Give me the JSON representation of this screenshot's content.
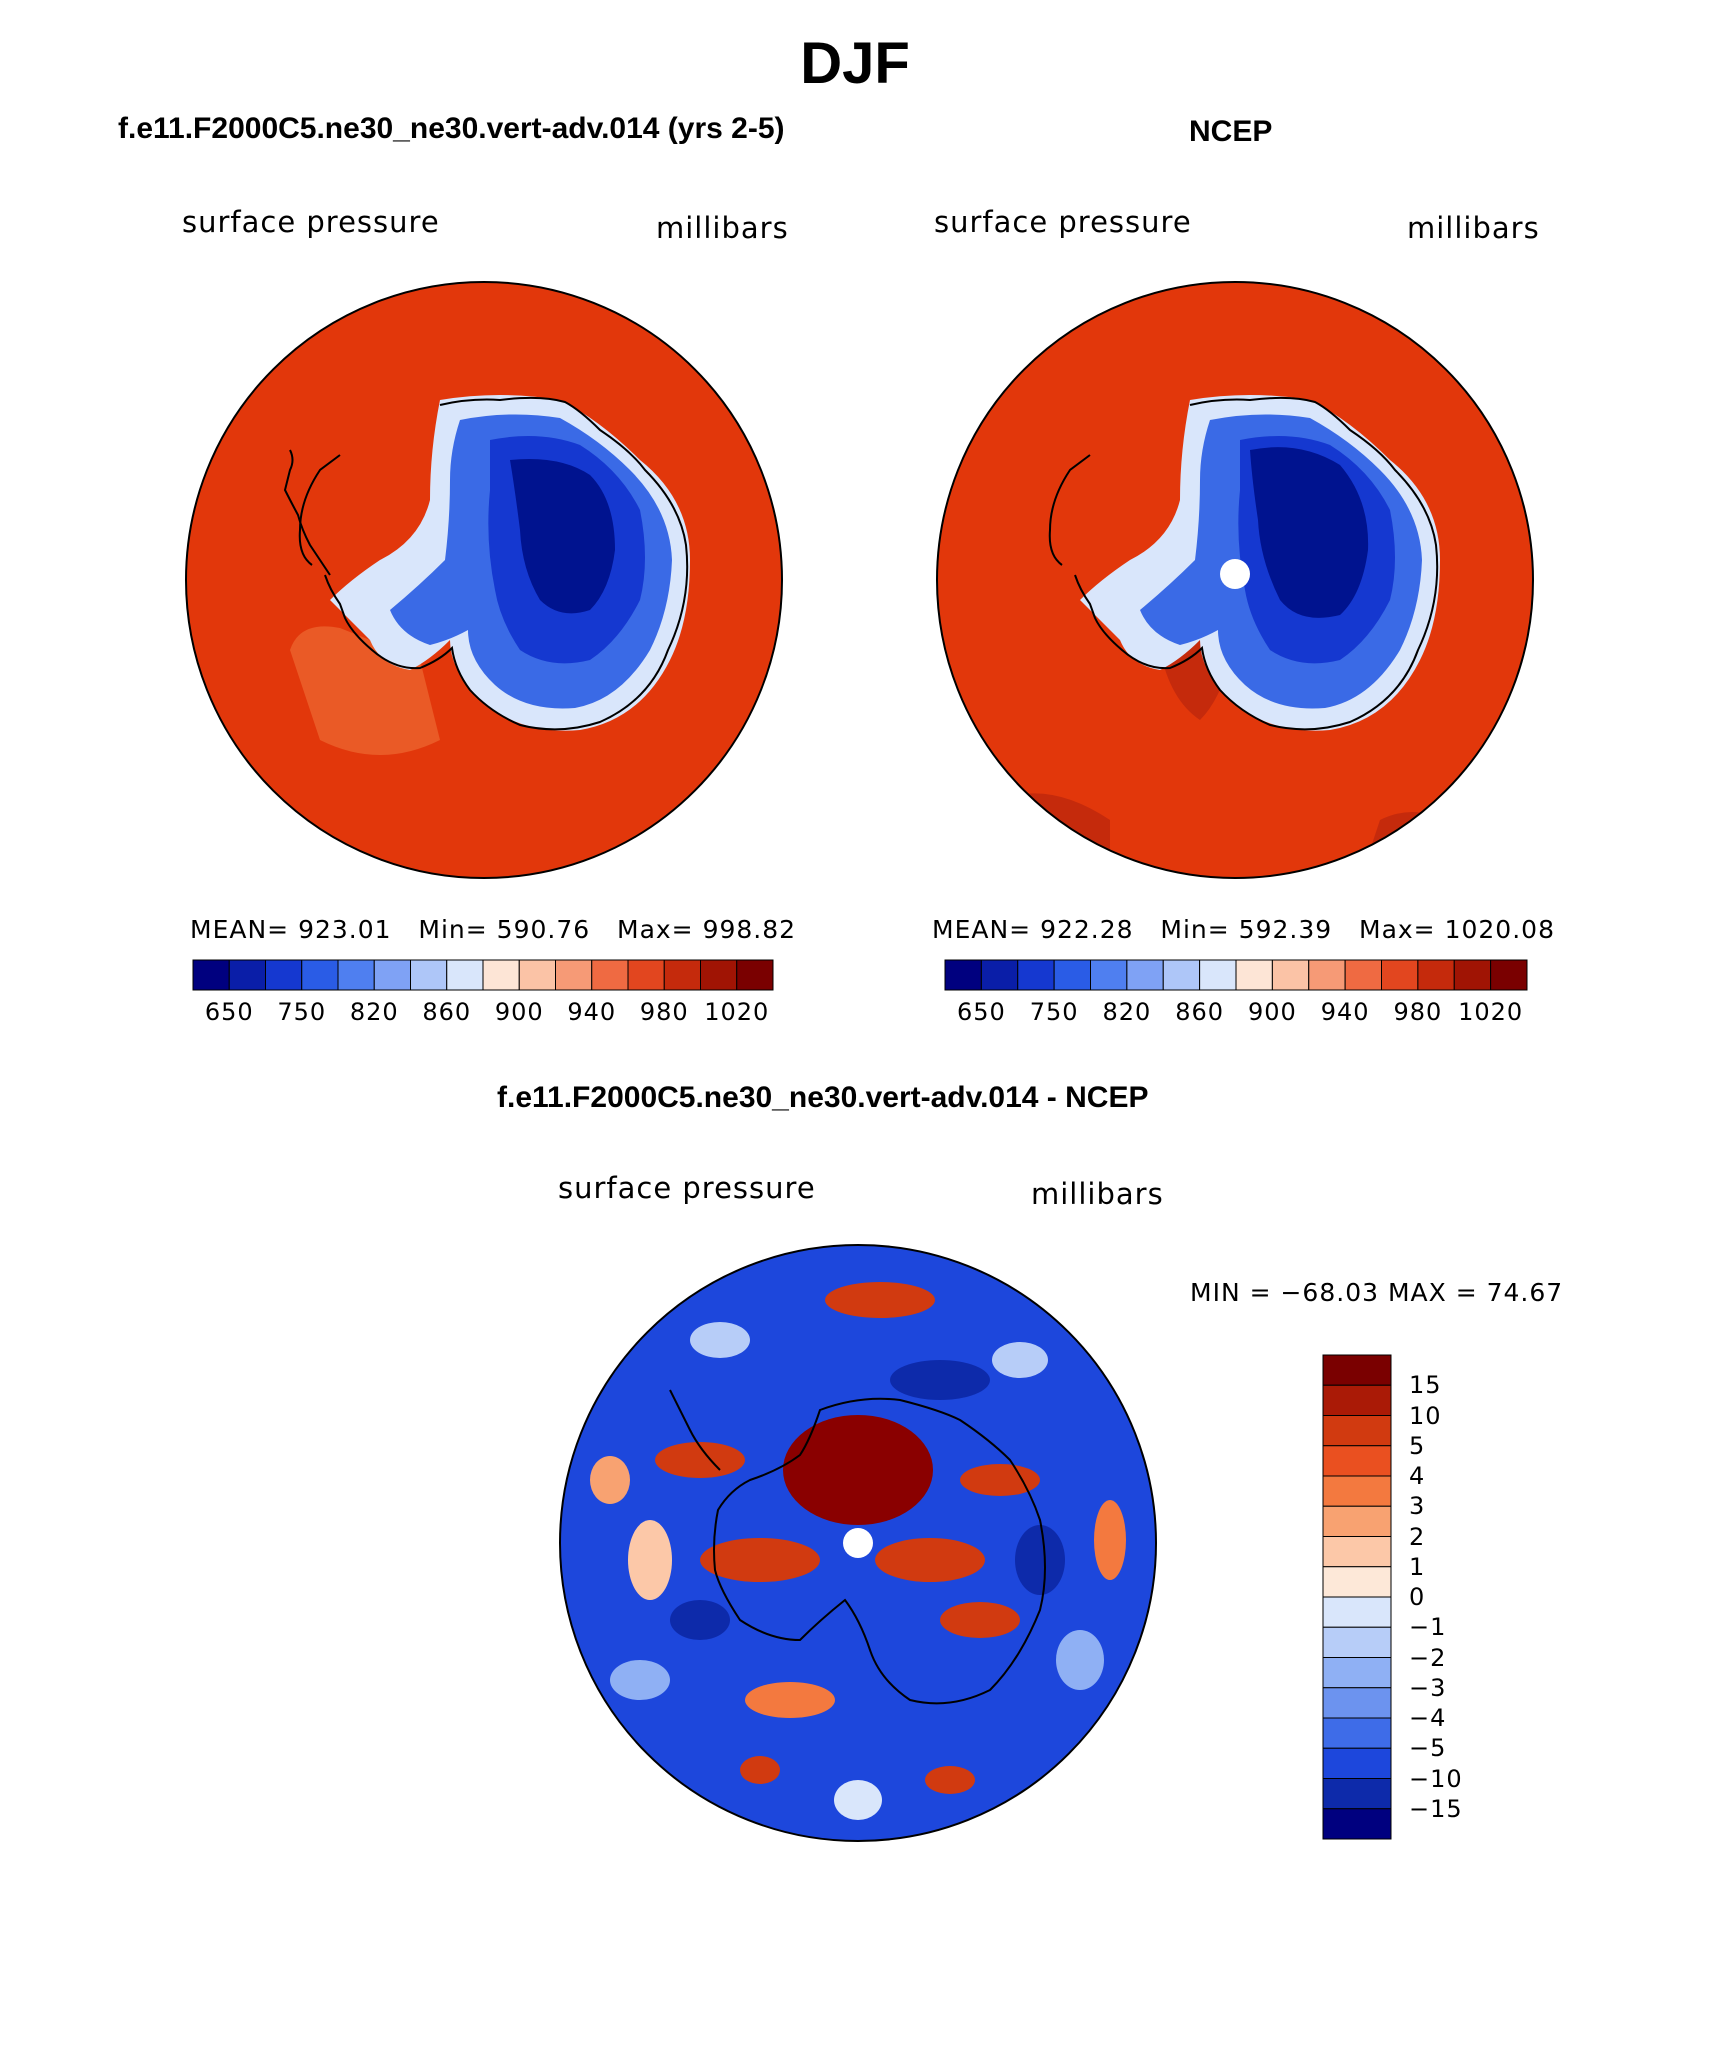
{
  "title": "DJF",
  "panels": {
    "model": {
      "title": "f.e11.F2000C5.ne30_ne30.vert-adv.014 (yrs 2-5)",
      "variable": "surface pressure",
      "units": "millibars",
      "stats": {
        "mean_label": "MEAN=",
        "mean": "923.01",
        "min_label": "Min=",
        "min": "590.76",
        "max_label": "Max=",
        "max": "998.82"
      }
    },
    "obs": {
      "title": "NCEP",
      "variable": "surface pressure",
      "units": "millibars",
      "stats": {
        "mean_label": "MEAN=",
        "mean": "922.28",
        "min_label": "Min=",
        "min": "592.39",
        "max_label": "Max=",
        "max": "1020.08"
      }
    },
    "diff": {
      "title": "f.e11.F2000C5.ne30_ne30.vert-adv.014 - NCEP",
      "variable": "surface pressure",
      "units": "millibars",
      "minmax": "MIN = −68.03 MAX =   74.67"
    }
  },
  "colorbar_abs": {
    "colors": [
      "#00007f",
      "#0a1ea8",
      "#1538d0",
      "#2a5ce6",
      "#4f7ff0",
      "#7fa2f5",
      "#aec6f8",
      "#d9e6fb",
      "#fde5d6",
      "#fbc3a6",
      "#f69a76",
      "#ef6a42",
      "#e2461f",
      "#c52a0c",
      "#a01404",
      "#7a0000"
    ],
    "labels": [
      "650",
      "750",
      "820",
      "860",
      "900",
      "940",
      "980",
      "1020"
    ]
  },
  "colorbar_diff": {
    "colors": [
      "#7a0000",
      "#aa1a06",
      "#d13a10",
      "#ea5020",
      "#f3793f",
      "#f8a271",
      "#fcc8a8",
      "#fde8d8",
      "#d9e6fb",
      "#b7cdf8",
      "#8fb0f4",
      "#6c93ef",
      "#3e6ce8",
      "#1d47dc",
      "#0d2aaa",
      "#00007f"
    ],
    "labels": [
      "15",
      "10",
      "5",
      "4",
      "3",
      "2",
      "1",
      "0",
      "−1",
      "−2",
      "−3",
      "−4",
      "−5",
      "−10",
      "−15"
    ]
  },
  "map_colors": {
    "ocean_high": "#e2370b",
    "ocean_mid": "#ea5a26",
    "ocean_dark": "#c52a0c",
    "land_deep": "#00138f",
    "land_mid": "#1538d0",
    "land_light": "#3a6ae6",
    "coast_pale": "#d9e6fb",
    "diff_blue": "#1d47dc",
    "diff_red": "#d13a10"
  },
  "chart_data": {
    "type": "heatmap",
    "series": [
      {
        "name": "f.e11.F2000C5.ne30_ne30.vert-adv.014 (yrs 2-5)",
        "mean": 923.01,
        "min": 590.76,
        "max": 998.82
      },
      {
        "name": "NCEP",
        "mean": 922.28,
        "min": 592.39,
        "max": 1020.08
      },
      {
        "name": "f.e11.F2000C5.ne30_ne30.vert-adv.014 - NCEP",
        "min": -68.03,
        "max": 74.67
      }
    ],
    "colorbar_levels_abs": [
      650,
      750,
      820,
      860,
      900,
      940,
      980,
      1020
    ],
    "colorbar_levels_diff": [
      15,
      10,
      5,
      4,
      3,
      2,
      1,
      0,
      -1,
      -2,
      -3,
      -4,
      -5,
      -10,
      -15
    ]
  }
}
